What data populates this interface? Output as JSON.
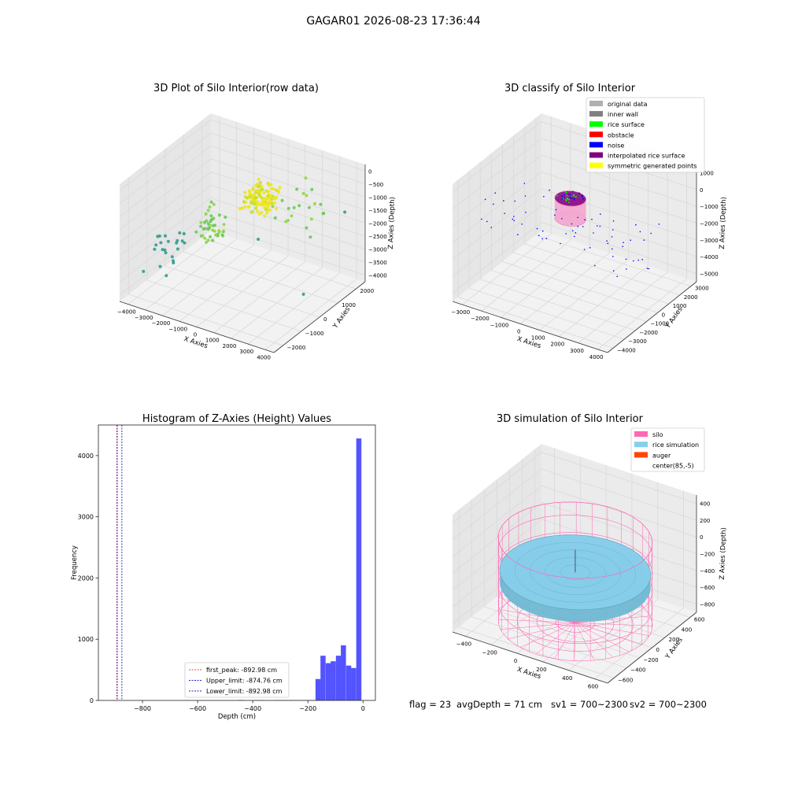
{
  "figure": {
    "title": "GAGAR01 2026-08-23 17:36:44"
  },
  "status_line": {
    "flag": "flag = 23",
    "avg_depth": "avgDepth = 71 cm",
    "sv1": "sv1 = 700~2300",
    "sv2": "sv2 = 700~2300"
  },
  "colors": {
    "pane": "#f2f2f2",
    "grid": "#d9d9d9",
    "histogram_bar": "#4a4aff",
    "first_peak_line": "#ff4040",
    "limit_lines": "#2020cc",
    "silo": "#ff69b4",
    "rice_simulation": "#87ceeb",
    "auger": "#ff4500",
    "viridis_low": "#2e9d8e",
    "viridis_mid": "#6bc95a",
    "viridis_high": "#f0e51e"
  },
  "chart_data": [
    {
      "type": "scatter",
      "subtype": "3d",
      "title": "3D Plot of Silo Interior(row data)",
      "xlabel": "X Axies",
      "ylabel": "Y Axies",
      "zlabel": "Z Axies (Depth)",
      "x_ticks": [
        "−4000",
        "−3000",
        "−2000",
        "−1000",
        "0",
        "1000",
        "2000",
        "3000",
        "4000"
      ],
      "y_ticks": [
        "−2000",
        "−1000",
        "0",
        "1000",
        "2000"
      ],
      "z_ticks": [
        "0",
        "−500",
        "−1000",
        "−1500",
        "−2000",
        "−2500",
        "−3000",
        "−3500",
        "−4000"
      ],
      "xlim": [
        -4000,
        4000
      ],
      "ylim": [
        -2500,
        2500
      ],
      "zlim": [
        -4200,
        100
      ],
      "colormap": "viridis by depth",
      "clusters": [
        {
          "x": [
            200,
            1500
          ],
          "y": [
            -400,
            600
          ],
          "z": [
            -1000,
            -300
          ],
          "n": 140,
          "color": "high"
        },
        {
          "x": [
            -1800,
            -600
          ],
          "y": [
            -900,
            200
          ],
          "z": [
            -2300,
            -1400
          ],
          "n": 45,
          "color": "mid"
        },
        {
          "x": [
            -3600,
            -2300
          ],
          "y": [
            -1600,
            -500
          ],
          "z": [
            -3400,
            -2300
          ],
          "n": 22,
          "color": "low"
        },
        {
          "x": [
            1500,
            3600
          ],
          "y": [
            -300,
            1800
          ],
          "z": [
            -1400,
            -400
          ],
          "n": 22,
          "color": "mid"
        }
      ],
      "outliers": [
        {
          "x": -3900,
          "y": -1300,
          "z": -3700
        },
        {
          "x": 2600,
          "y": 600,
          "z": -4000
        },
        {
          "x": 3700,
          "y": 1700,
          "z": -1300
        },
        {
          "x": -600,
          "y": 1500,
          "z": -3200
        }
      ]
    },
    {
      "type": "scatter",
      "subtype": "3d",
      "title": "3D classify of Silo Interior",
      "xlabel": "X Axies",
      "ylabel": "Y Axies",
      "zlabel": "Z Axies (Depth)",
      "x_ticks": [
        "−3000",
        "−2000",
        "−1000",
        "0",
        "1000",
        "2000",
        "3000",
        "4000"
      ],
      "y_ticks": [
        "−4000",
        "−3000",
        "−2000",
        "−1000",
        "0",
        "1000",
        "2000",
        "3000"
      ],
      "z_ticks": [
        "1000",
        "0",
        "−1000",
        "−2000",
        "−3000",
        "−4000",
        "−5000"
      ],
      "xlim": [
        -3500,
        4500
      ],
      "ylim": [
        -4500,
        3500
      ],
      "zlim": [
        -5500,
        1500
      ],
      "z_top_tick_partial": "00",
      "legend": [
        {
          "label": "original data",
          "color": "#b0b0b0"
        },
        {
          "label": "inner wall",
          "color": "#808080"
        },
        {
          "label": "rice surface",
          "color": "#00ff00"
        },
        {
          "label": "obstacle",
          "color": "#ff0000"
        },
        {
          "label": "noise",
          "color": "#0000ff"
        },
        {
          "label": "interpolated rice surface",
          "color": "#800080"
        },
        {
          "label": "symmetric generated points",
          "color": "#ffff00"
        }
      ],
      "silo_cylinder": {
        "center": [
          0,
          0
        ],
        "radius": 700,
        "z_range": [
          -1600,
          -400
        ]
      }
    },
    {
      "type": "histogram",
      "title": "Histogram of Z-Axies (Height) Values",
      "xlabel": "Depth (cm)",
      "ylabel": "Frequency",
      "xlim": [
        -960,
        45
      ],
      "ylim": [
        0,
        4500
      ],
      "x_ticks": [
        -800,
        -600,
        -400,
        -200,
        0
      ],
      "y_ticks": [
        0,
        1000,
        2000,
        3000,
        4000
      ],
      "bin_width": 18.5,
      "bins": [
        {
          "x": -442,
          "count": 8
        },
        {
          "x": -386,
          "count": 5
        },
        {
          "x": -367,
          "count": 5
        },
        {
          "x": -312,
          "count": 5
        },
        {
          "x": -293,
          "count": 5
        },
        {
          "x": -274,
          "count": 5
        },
        {
          "x": -256,
          "count": 5
        },
        {
          "x": -237,
          "count": 5
        },
        {
          "x": -219,
          "count": 5
        },
        {
          "x": -200,
          "count": 5
        },
        {
          "x": -182,
          "count": 5
        },
        {
          "x": -163,
          "count": 350
        },
        {
          "x": -145,
          "count": 730
        },
        {
          "x": -126,
          "count": 610
        },
        {
          "x": -108,
          "count": 640
        },
        {
          "x": -89,
          "count": 730
        },
        {
          "x": -71,
          "count": 900
        },
        {
          "x": -52,
          "count": 570
        },
        {
          "x": -34,
          "count": 530
        },
        {
          "x": -15,
          "count": 4280
        }
      ],
      "vlines": [
        {
          "x": -892.98,
          "label": "first_peak: -892.98 cm",
          "color": "#ff4040"
        },
        {
          "x": -874.76,
          "label": "Upper_limit: -874.76 cm",
          "color": "#2020cc"
        },
        {
          "x": -892.98,
          "label": "Lower_limit: -892.98 cm",
          "color": "#2020cc"
        }
      ],
      "legend_position": "lower-center"
    },
    {
      "type": "area",
      "subtype": "3d-surface",
      "title": "3D simulation of Silo Interior",
      "xlabel": "X Axies",
      "ylabel": "Y Axies",
      "zlabel": "Z Axies (Depth)",
      "x_ticks": [
        "−400",
        "−200",
        "0",
        "200",
        "400",
        "600"
      ],
      "y_ticks": [
        "−600",
        "−400",
        "−200",
        "0",
        "200",
        "400",
        "600"
      ],
      "z_ticks": [
        "400",
        "200",
        "0",
        "−200",
        "−400",
        "−600",
        "−800"
      ],
      "xlim": [
        -650,
        800
      ],
      "ylim": [
        -700,
        700
      ],
      "zlim": [
        -900,
        450
      ],
      "legend": [
        {
          "label": "silo",
          "color": "#ff69b4"
        },
        {
          "label": "rice simulation",
          "color": "#87ceeb"
        },
        {
          "label": "auger",
          "color": "#ff4500"
        },
        {
          "label": "center(85,-5)",
          "color": ""
        }
      ],
      "silo": {
        "center": [
          85,
          -5
        ],
        "radius": 620,
        "z_range": [
          -900,
          50
        ]
      },
      "rice_surface_depth": -320
    }
  ]
}
